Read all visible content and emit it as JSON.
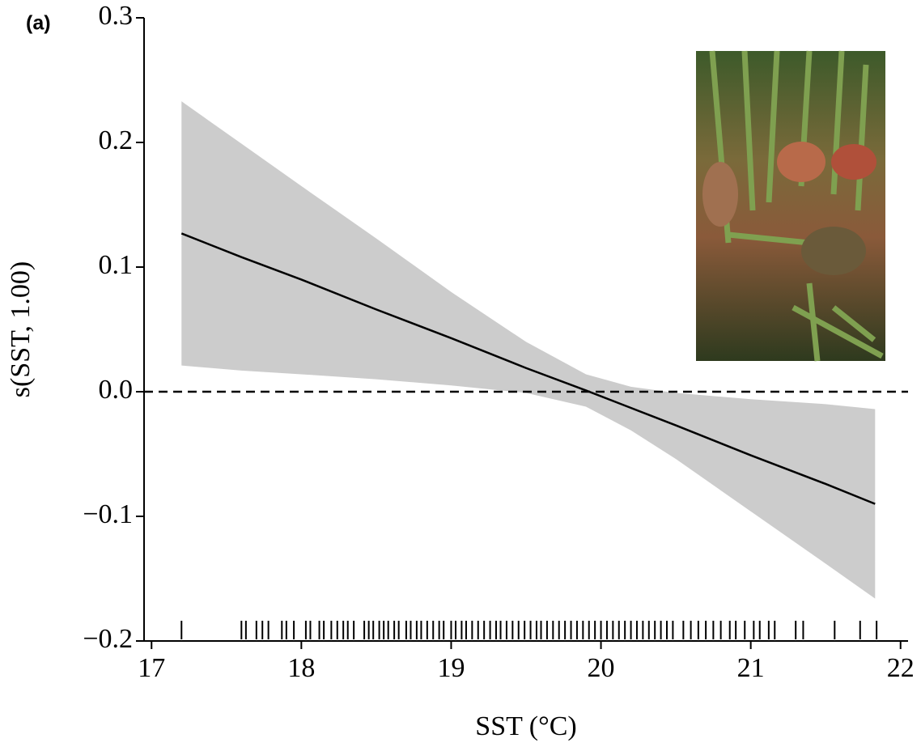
{
  "chart_data": {
    "type": "gam-smooth",
    "panel_label": "(a)",
    "xlabel": "SST (°C)",
    "ylabel": "s(SST, 1.00)",
    "x": [
      17.2,
      17.6,
      18.0,
      18.5,
      19.0,
      19.5,
      19.9,
      20.2,
      20.5,
      21.0,
      21.5,
      21.83
    ],
    "fit": [
      0.127,
      0.108,
      0.09,
      0.066,
      0.043,
      0.019,
      0.001,
      -0.013,
      -0.027,
      -0.051,
      -0.074,
      -0.09
    ],
    "ci_upper": [
      0.233,
      0.199,
      0.165,
      0.123,
      0.08,
      0.04,
      0.014,
      0.004,
      -0.001,
      -0.006,
      -0.01,
      -0.014
    ],
    "ci_lower": [
      0.021,
      0.017,
      0.014,
      0.01,
      0.005,
      -0.001,
      -0.012,
      -0.031,
      -0.054,
      -0.096,
      -0.138,
      -0.166
    ],
    "line_color": "#000000",
    "band_color": "#cccccc",
    "reference_line": 0,
    "rug": [
      17.2,
      17.6,
      17.63,
      17.7,
      17.74,
      17.78,
      17.87,
      17.9,
      17.95,
      18.03,
      18.06,
      18.12,
      18.15,
      18.2,
      18.24,
      18.28,
      18.31,
      18.35,
      18.42,
      18.45,
      18.48,
      18.52,
      18.55,
      18.58,
      18.62,
      18.65,
      18.7,
      18.73,
      18.77,
      18.8,
      18.84,
      18.88,
      18.92,
      18.95,
      19.0,
      19.03,
      19.07,
      19.1,
      19.14,
      19.18,
      19.22,
      19.26,
      19.3,
      19.33,
      19.37,
      19.41,
      19.45,
      19.49,
      19.53,
      19.57,
      19.6,
      19.64,
      19.68,
      19.72,
      19.76,
      19.8,
      19.84,
      19.88,
      19.92,
      19.96,
      20.0,
      20.04,
      20.08,
      20.12,
      20.16,
      20.2,
      20.24,
      20.28,
      20.32,
      20.36,
      20.4,
      20.44,
      20.48,
      20.55,
      20.6,
      20.65,
      20.7,
      20.75,
      20.8,
      20.86,
      20.9,
      20.96,
      21.02,
      21.06,
      21.12,
      21.16,
      21.3,
      21.35,
      21.56,
      21.73,
      21.84
    ],
    "xlim": [
      16.95,
      22.05
    ],
    "ylim": [
      -0.2,
      0.3
    ],
    "xticks": [
      17,
      18,
      19,
      20,
      21,
      22
    ],
    "yticks": [
      {
        "value": -0.2,
        "label": "−0.2"
      },
      {
        "value": -0.1,
        "label": "−0.1"
      },
      {
        "value": 0,
        "label": "0.0"
      },
      0.1,
      0.2,
      0.3
    ]
  }
}
